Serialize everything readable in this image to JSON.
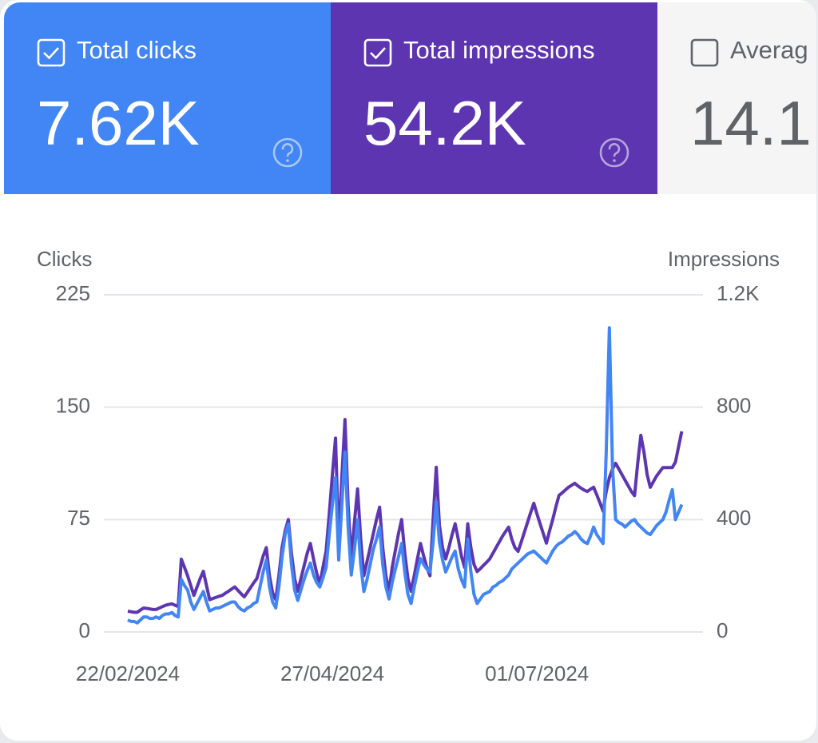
{
  "cards": [
    {
      "label": "Total clicks",
      "value": "7.62K",
      "checked": true
    },
    {
      "label": "Total impressions",
      "value": "54.2K",
      "checked": true
    },
    {
      "label": "Averag",
      "value": "14.1",
      "checked": false
    }
  ],
  "chart_data": {
    "type": "line",
    "y_label": "Clicks",
    "y2_label": "Impressions",
    "categories": [
      "22/02/2024",
      null,
      null,
      null,
      null,
      null,
      null,
      null,
      null,
      null,
      null,
      null,
      null,
      null,
      null,
      null,
      null,
      null,
      null,
      null,
      null,
      null,
      null,
      null,
      null,
      null,
      null,
      null,
      null,
      null,
      null,
      null,
      null,
      null,
      null,
      null,
      null,
      null,
      null,
      null,
      null,
      null,
      null,
      null,
      null,
      null,
      null,
      null,
      null,
      null,
      null,
      null,
      null,
      null,
      null,
      null,
      null,
      null,
      null,
      null,
      null,
      null,
      null,
      null,
      null,
      "27/04/2024",
      null,
      null,
      null,
      null,
      null,
      null,
      null,
      null,
      null,
      null,
      null,
      null,
      null,
      null,
      null,
      null,
      null,
      null,
      null,
      null,
      null,
      null,
      null,
      null,
      null,
      null,
      null,
      null,
      null,
      null,
      null,
      null,
      null,
      null,
      null,
      null,
      null,
      null,
      null,
      null,
      null,
      null,
      null,
      null,
      null,
      null,
      null,
      null,
      null,
      null,
      null,
      null,
      null,
      null,
      null,
      null,
      null,
      null,
      null,
      null,
      null,
      null,
      null,
      null,
      "01/07/2024",
      null,
      null,
      null,
      null,
      null,
      null,
      null,
      null,
      null,
      null,
      null,
      null,
      null,
      null,
      null,
      null,
      null,
      null,
      null,
      null,
      null,
      null,
      null,
      null,
      null,
      null,
      null,
      null,
      null,
      null,
      null,
      null,
      null,
      null,
      null,
      null,
      null,
      null,
      null,
      null,
      null,
      null,
      null,
      null,
      null,
      null
    ],
    "series": [
      {
        "name": "Total impressions",
        "color": "#5e35b1",
        "axis": "y2",
        "values": [
          74,
          72,
          70,
          70,
          78,
          85,
          84,
          82,
          80,
          80,
          85,
          90,
          95,
          98,
          100,
          95,
          90,
          259,
          230,
          200,
          165,
          130,
          160,
          190,
          216,
          165,
          115,
          119,
          123,
          127,
          130,
          138,
          145,
          153,
          160,
          148,
          136,
          125,
          141,
          158,
          175,
          190,
          230,
          270,
          300,
          200,
          140,
          115,
          200,
          300,
          360,
          400,
          280,
          190,
          145,
          190,
          235,
          280,
          315,
          260,
          210,
          170,
          230,
          288,
          420,
          560,
          690,
          315,
          550,
          756,
          450,
          260,
          390,
          509,
          330,
          200,
          250,
          300,
          350,
          400,
          444,
          300,
          200,
          145,
          230,
          290,
          350,
          400,
          280,
          190,
          145,
          200,
          260,
          315,
          270,
          230,
          200,
          400,
          586,
          380,
          300,
          260,
          300,
          345,
          385,
          330,
          270,
          230,
          385,
          300,
          240,
          215,
          225,
          237,
          248,
          260,
          280,
          300,
          320,
          340,
          357,
          373,
          330,
          300,
          287,
          320,
          355,
          390,
          425,
          458,
          420,
          385,
          350,
          316,
          360,
          400,
          445,
          486,
          495,
          505,
          515,
          522,
          529,
          520,
          512,
          505,
          500,
          508,
          515,
          488,
          460,
          430,
          500,
          549,
          580,
          600,
          580,
          560,
          540,
          520,
          500,
          485,
          600,
          700,
          640,
          560,
          515,
          535,
          555,
          570,
          585,
          585,
          585,
          585,
          605,
          660,
          714
        ]
      },
      {
        "name": "Total clicks",
        "color": "#4285f4",
        "values": [
          8,
          7,
          7,
          6,
          8,
          10,
          10,
          9,
          9,
          10,
          9,
          11,
          12,
          12,
          13,
          11,
          10,
          35,
          31,
          28,
          20,
          15,
          19,
          23,
          27,
          20,
          14,
          15,
          16,
          16,
          17,
          18,
          19,
          20,
          20,
          17,
          15,
          14,
          16,
          17,
          19,
          20,
          30,
          40,
          48,
          30,
          20,
          16,
          30,
          50,
          65,
          72,
          45,
          28,
          21,
          28,
          35,
          41,
          46,
          38,
          33,
          30,
          36,
          43,
          65,
          85,
          103,
          48,
          85,
          120,
          70,
          38,
          55,
          75,
          45,
          27,
          35,
          45,
          55,
          62,
          70,
          45,
          30,
          22,
          33,
          42,
          50,
          59,
          40,
          25,
          19,
          30,
          40,
          49,
          45,
          42,
          40,
          60,
          87,
          60,
          48,
          40,
          45,
          50,
          54,
          42,
          35,
          30,
          62,
          40,
          25,
          19,
          22,
          25,
          26,
          27,
          30,
          31,
          33,
          34,
          36,
          38,
          42,
          44,
          46,
          48,
          50,
          52,
          53,
          54,
          52,
          50,
          48,
          46,
          50,
          54,
          57,
          59,
          60,
          62,
          64,
          65,
          67,
          65,
          62,
          60,
          59,
          64,
          70,
          65,
          62,
          59,
          120,
          203,
          110,
          75,
          73,
          72,
          70,
          72,
          74,
          75,
          72,
          70,
          68,
          66,
          65,
          68,
          71,
          73,
          75,
          80,
          88,
          95,
          75,
          80,
          85
        ]
      }
    ],
    "ylim": [
      0,
      225
    ],
    "yticks": [
      0,
      75,
      150,
      225
    ],
    "y2lim": [
      0,
      1200
    ],
    "y2ticks": [
      0,
      400,
      800,
      {
        "value": 1200,
        "label": "1.2K"
      }
    ],
    "grid": true
  }
}
